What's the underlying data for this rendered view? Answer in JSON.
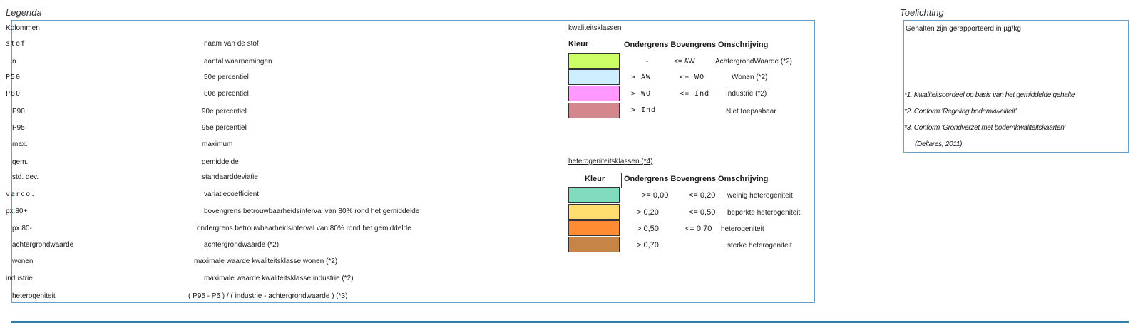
{
  "legend": {
    "title": "Legenda",
    "columns_header": "Kolommen",
    "rows": [
      {
        "key": "stof",
        "desc": "naam van de stof"
      },
      {
        "key": "n",
        "desc": "aantal waarnemingen"
      },
      {
        "key": "P50",
        "desc": "50e percentiel"
      },
      {
        "key": "P80",
        "desc": "80e percentiel"
      },
      {
        "key": "P90",
        "desc": "90e percentiel"
      },
      {
        "key": "P95",
        "desc": "95e percentiel"
      },
      {
        "key": "max.",
        "desc": "maximum"
      },
      {
        "key": "gem.",
        "desc": "gemiddelde"
      },
      {
        "key": "std. dev.",
        "desc": "standaarddeviatie"
      },
      {
        "key": "varco.",
        "desc": "variatiecoefficient"
      },
      {
        "key": "px.80+",
        "desc": "bovengrens betrouwbaarheidsinterval van 80% rond het gemiddelde"
      },
      {
        "key": "px.80-",
        "desc": "ondergrens betrouwbaarheidsinterval van 80% rond het gemiddelde"
      },
      {
        "key": "achtergrondwaarde",
        "desc": "achtergrondwaarde (*2)"
      },
      {
        "key": "wonen",
        "desc": "maximale waarde kwaliteitsklasse wonen (*2)"
      },
      {
        "key": "industrie",
        "desc": "maximale waarde kwaliteitsklasse industrie (*2)"
      },
      {
        "key": "heterogeniteit",
        "desc": "( P95 - P5 ) / ( industrie - achtergrondwaarde ) (*3)"
      }
    ]
  },
  "quality": {
    "header": "kwaliteitsklassen",
    "col_kleur": "Kleur",
    "col_rest": "Ondergrens Bovengrens Omschrijving",
    "rows": [
      {
        "color": "#ccff66",
        "onder": "-",
        "boven": "<= AW",
        "desc": "AchtergrondWaarde (*2)"
      },
      {
        "color": "#cceeff",
        "onder": "> AW",
        "boven": "<= WO",
        "desc": "Wonen (*2)"
      },
      {
        "color": "#ff99ff",
        "onder": "> WO",
        "boven": "<= Ind",
        "desc": "Industrie (*2)"
      },
      {
        "color": "#d4888e",
        "onder": "> Ind",
        "boven": "",
        "desc": "Niet toepasbaar"
      }
    ]
  },
  "hetero": {
    "header": "heterogeniteitsklassen (*4)",
    "col_kleur": "Kleur",
    "col_rest": "Ondergrens Bovengrens Omschrijving",
    "rows": [
      {
        "color": "#80dbbf",
        "onder": ">= 0,00",
        "boven": "<= 0,20",
        "desc": "weinig heterogeniteit"
      },
      {
        "color": "#ffdd6e",
        "onder": "> 0,20",
        "boven": "<= 0,50",
        "desc": "beperkte heterogeniteit"
      },
      {
        "color": "#ff8c33",
        "onder": "> 0,50",
        "boven": "<= 0,70",
        "desc": "heterogeniteit"
      },
      {
        "color": "#c68447",
        "onder": "> 0,70",
        "boven": "",
        "desc": "sterke heterogeniteit"
      }
    ]
  },
  "toelichting": {
    "title": "Toelichting",
    "text": "Gehalten zijn gerapporteerd in µg/kg",
    "notes": [
      "*1. Kwaliteitsoordeel op basis van het gemiddelde gehalte",
      "*2. Conform 'Regeling bodemkwaliteit'",
      "*3. Conform 'Grondverzet met bodemkwaliteitskaarten'",
      "(Deltares, 2011)"
    ]
  }
}
